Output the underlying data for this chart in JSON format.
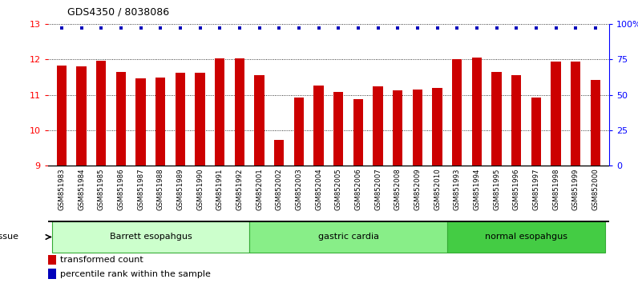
{
  "title": "GDS4350 / 8038086",
  "samples": [
    "GSM851983",
    "GSM851984",
    "GSM851985",
    "GSM851986",
    "GSM851987",
    "GSM851988",
    "GSM851989",
    "GSM851990",
    "GSM851991",
    "GSM851992",
    "GSM852001",
    "GSM852002",
    "GSM852003",
    "GSM852004",
    "GSM852005",
    "GSM852006",
    "GSM852007",
    "GSM852008",
    "GSM852009",
    "GSM852010",
    "GSM851993",
    "GSM851994",
    "GSM851995",
    "GSM851996",
    "GSM851997",
    "GSM851998",
    "GSM851999",
    "GSM852000"
  ],
  "bar_values": [
    11.83,
    11.8,
    11.96,
    11.65,
    11.47,
    11.48,
    11.63,
    11.63,
    12.02,
    12.02,
    11.55,
    9.72,
    10.93,
    11.27,
    11.07,
    10.88,
    11.25,
    11.13,
    11.15,
    11.2,
    12.0,
    12.05,
    11.65,
    11.55,
    10.92,
    11.95,
    11.95,
    11.42
  ],
  "percentile_values_near_top": true,
  "bar_color": "#cc0000",
  "percentile_color": "#0000bb",
  "ylim_left": [
    9,
    13
  ],
  "ylim_right": [
    0,
    100
  ],
  "yticks_left": [
    9,
    10,
    11,
    12,
    13
  ],
  "yticks_right": [
    0,
    25,
    50,
    75,
    100
  ],
  "yticklabels_right": [
    "0",
    "25",
    "50",
    "75",
    "100%"
  ],
  "groups": [
    {
      "label": "Barrett esopahgus",
      "start": 0,
      "end": 10,
      "color": "#ccffcc"
    },
    {
      "label": "gastric cardia",
      "start": 10,
      "end": 20,
      "color": "#88ee88"
    },
    {
      "label": "normal esopahgus",
      "start": 20,
      "end": 28,
      "color": "#44cc44"
    }
  ],
  "tissue_label": "tissue",
  "legend_bar_label": "transformed count",
  "legend_dot_label": "percentile rank within the sample",
  "background_color": "#ffffff",
  "xtick_bg_color": "#cccccc",
  "bar_width": 0.5
}
